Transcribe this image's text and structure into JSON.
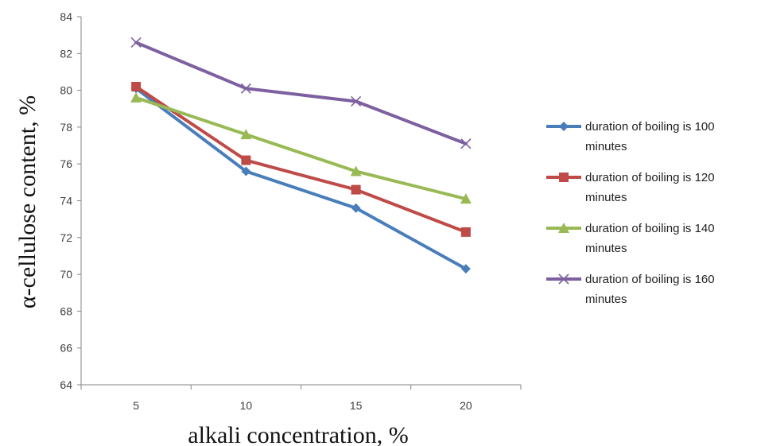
{
  "chart_data": {
    "type": "line",
    "title": "",
    "xlabel": "alkali concentration, %",
    "ylabel": "α-cellulose content, %",
    "categories": [
      "5",
      "10",
      "15",
      "20"
    ],
    "ylim": [
      64,
      84
    ],
    "yticks": [
      64,
      66,
      68,
      70,
      72,
      74,
      76,
      78,
      80,
      82,
      84
    ],
    "grid": false,
    "legend": "right",
    "series": [
      {
        "name": "duration of boiling is 100 minutes",
        "values": [
          80.1,
          75.6,
          73.6,
          70.3
        ],
        "color": "#4a7ebb",
        "marker": "diamond"
      },
      {
        "name": "duration of boiling is 120 minutes",
        "values": [
          80.2,
          76.2,
          74.6,
          72.3
        ],
        "color": "#be4b48",
        "marker": "square"
      },
      {
        "name": "duration of boiling is 140 minutes",
        "values": [
          79.6,
          77.6,
          75.6,
          74.1
        ],
        "color": "#98b954",
        "marker": "triangle"
      },
      {
        "name": "duration of boiling is 160 minutes",
        "values": [
          82.6,
          80.1,
          79.4,
          77.1
        ],
        "color": "#7d60a0",
        "marker": "x"
      }
    ]
  }
}
